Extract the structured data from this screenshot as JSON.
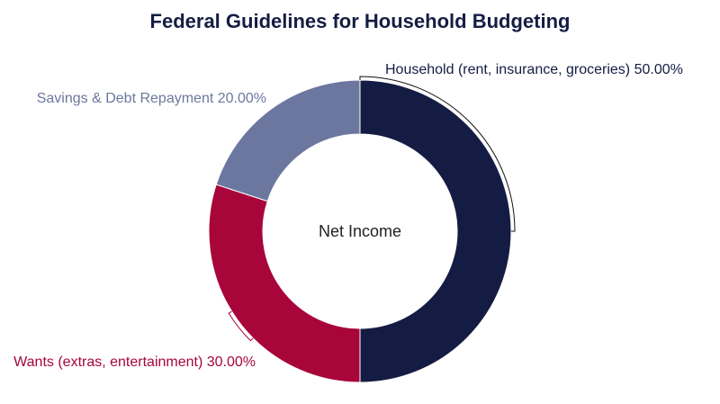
{
  "chart_data": {
    "type": "pie",
    "style": "donut",
    "title": "Federal Guidelines for Household Budgeting",
    "center_label": "Net Income",
    "slices": [
      {
        "label": "Household (rent, insurance, groceries)",
        "value": 50.0,
        "display": "50.00%",
        "color": "#151c43"
      },
      {
        "label": "Wants (extras, entertainment)",
        "value": 30.0,
        "display": "30.00%",
        "color": "#a8053a"
      },
      {
        "label": "Savings & Debt Repayment",
        "value": 20.0,
        "display": "20.00%",
        "color": "#6c779f"
      }
    ]
  }
}
